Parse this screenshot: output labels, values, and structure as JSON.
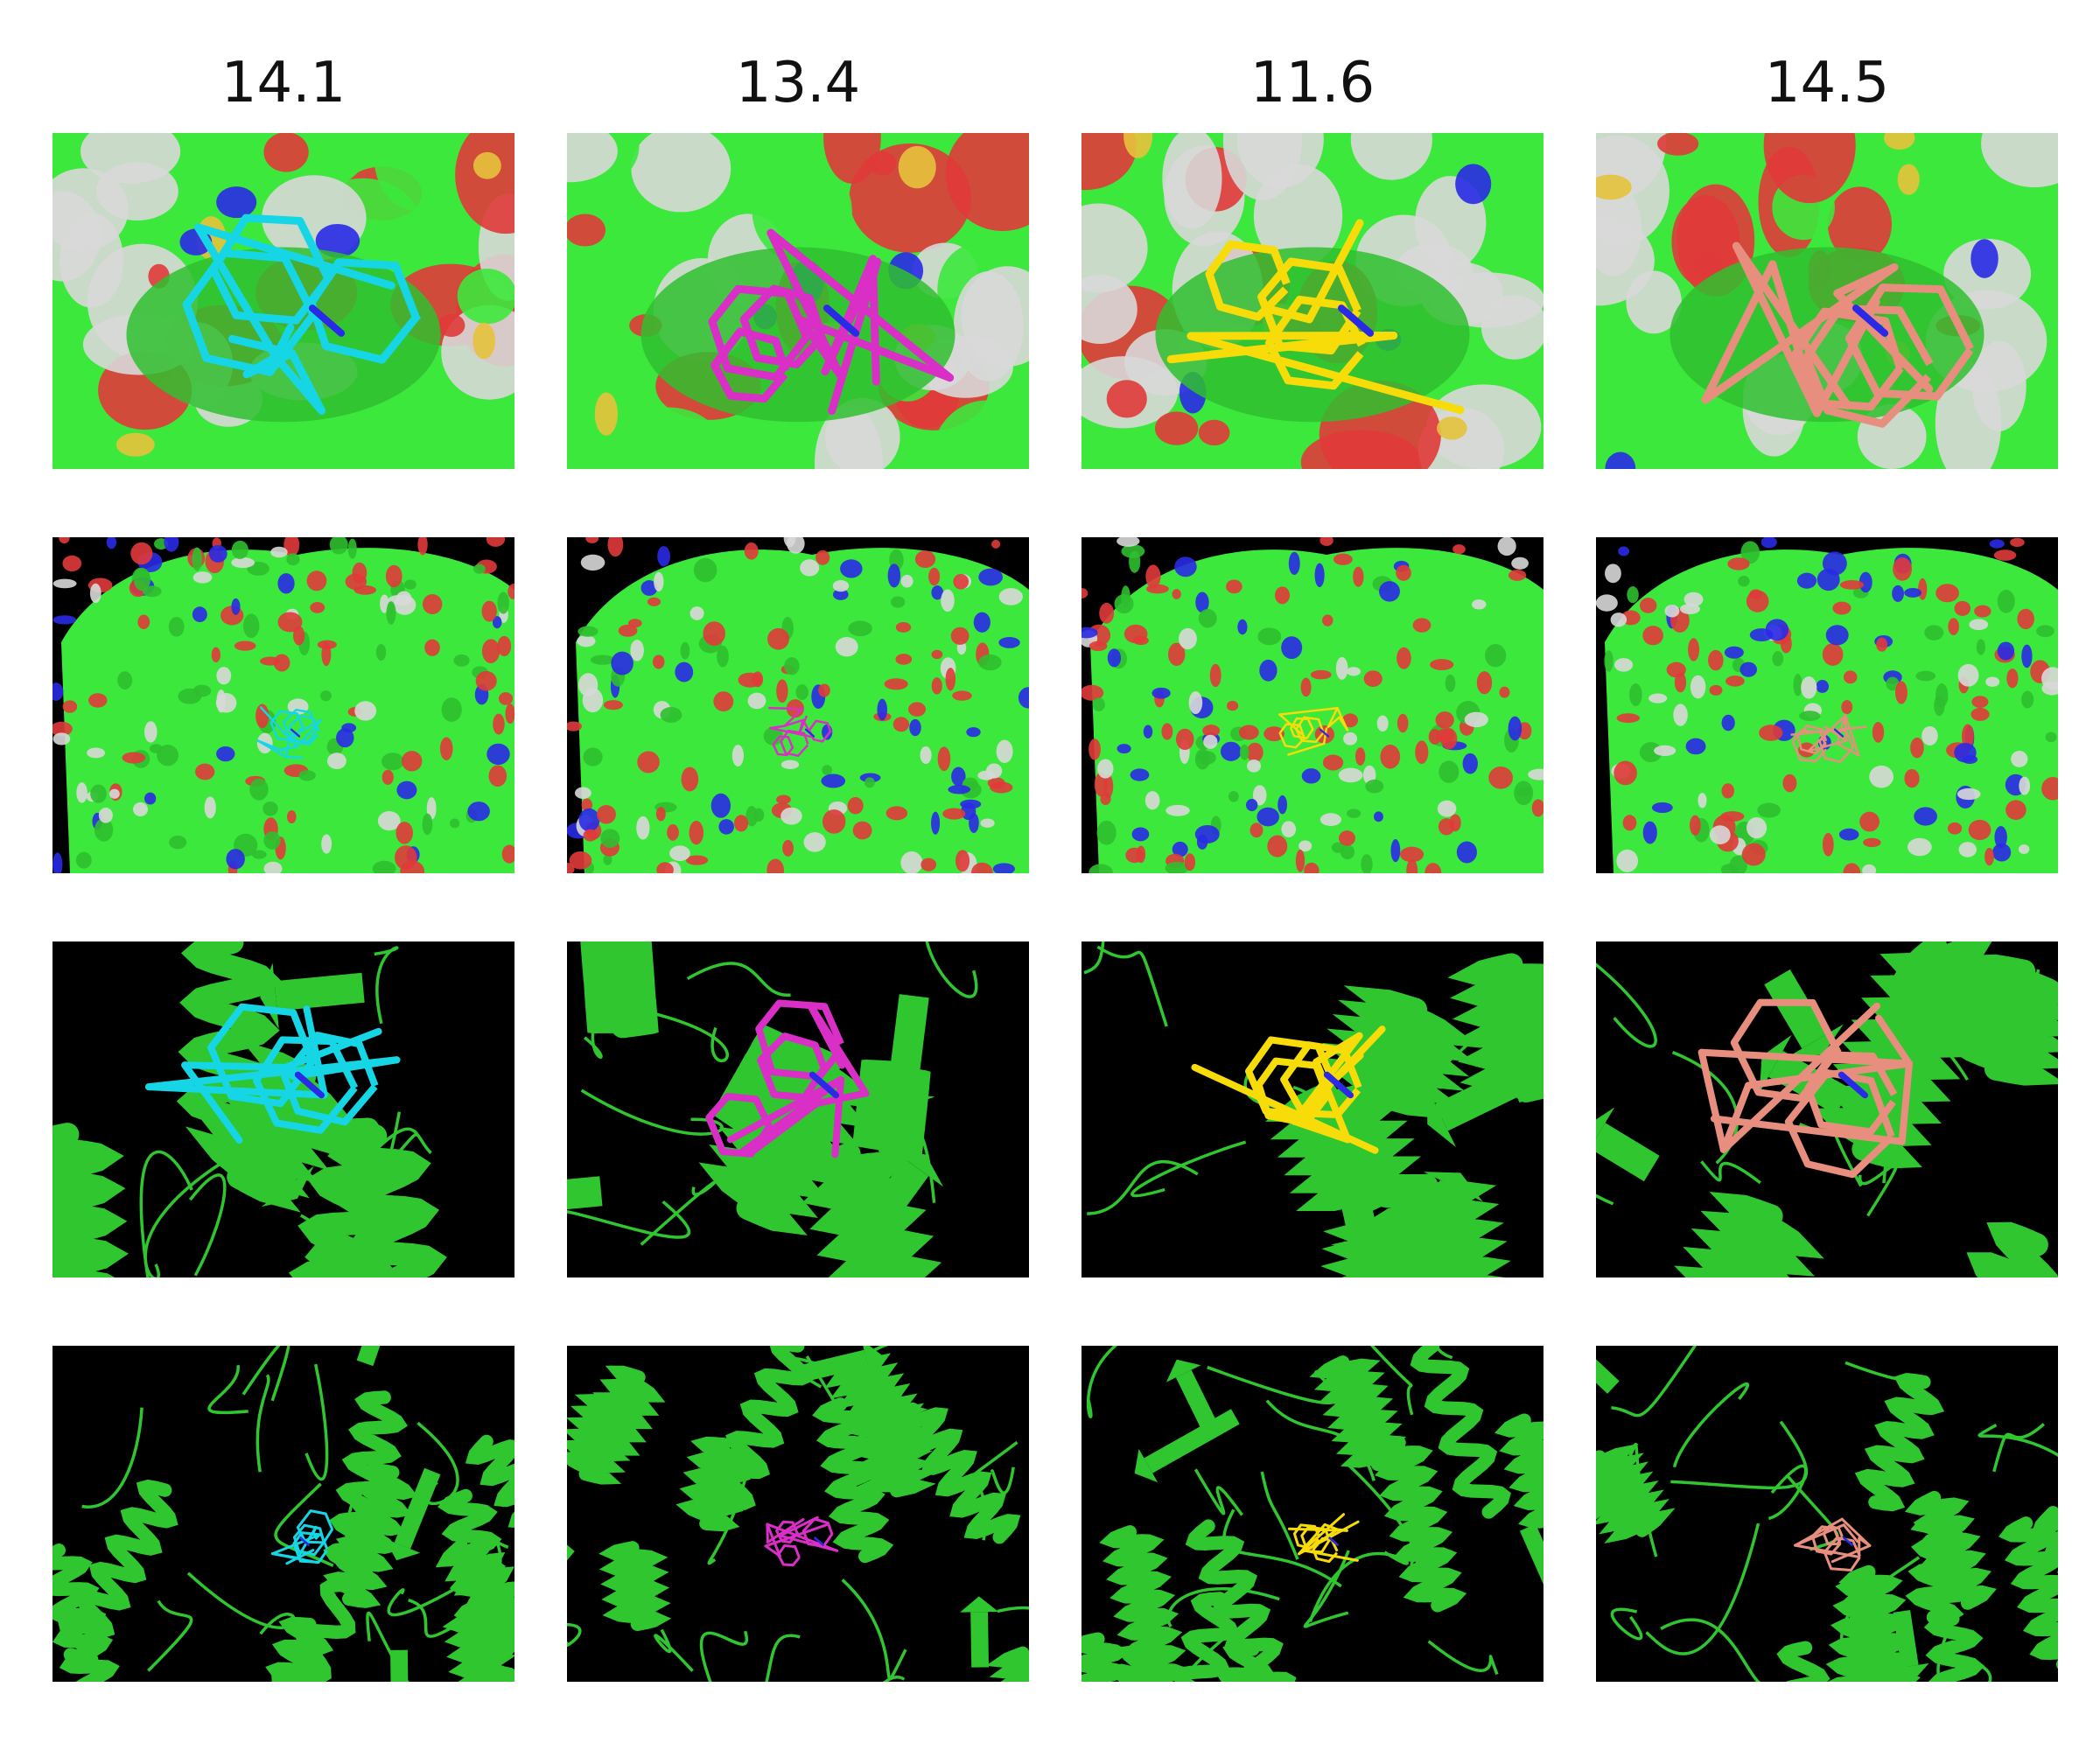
{
  "columns": [
    {
      "score": "14.1",
      "ligand_color": "#16d6e6"
    },
    {
      "score": "13.4",
      "ligand_color": "#d92fc6"
    },
    {
      "score": "11.6",
      "ligand_color": "#f7dc0a"
    },
    {
      "score": "14.5",
      "ligand_color": "#e88e7f"
    }
  ],
  "rows": [
    {
      "view": "pocket-surface-closeup"
    },
    {
      "view": "full-surface"
    },
    {
      "view": "cartoon-closeup"
    },
    {
      "view": "cartoon-full"
    }
  ],
  "colors": {
    "protein_carbon": "#3ce83c",
    "oxygen": "#e03a3a",
    "nitrogen": "#2a2ae6",
    "hydrogen_surface": "#d8d8d8",
    "sulfur": "#e6c23c",
    "background_dark": "#000000",
    "cartoon": "#2fc62f"
  }
}
